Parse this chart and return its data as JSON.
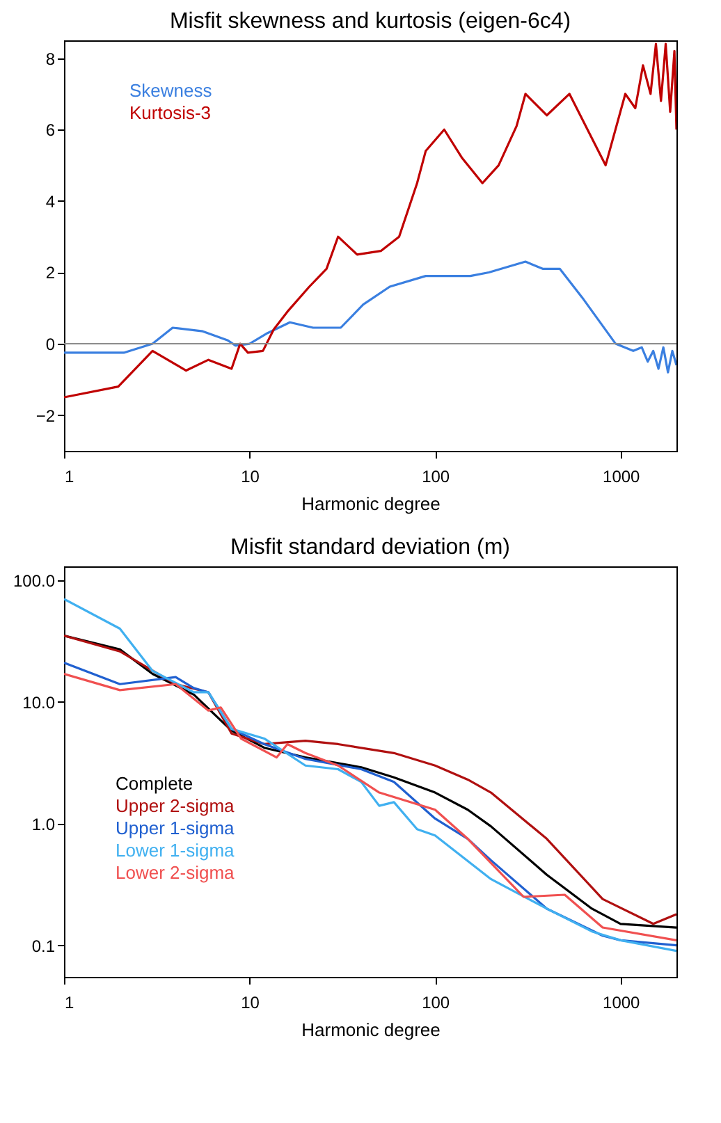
{
  "chart_data": [
    {
      "type": "line",
      "title": "Misfit skewness and kurtosis (eigen-6c4)",
      "xlabel": "Harmonic degree",
      "log": "x",
      "grid": false,
      "legend": "top left",
      "xlim": [
        1,
        2000
      ],
      "xticks": [
        1,
        10,
        100,
        1000
      ],
      "ylim": [
        -3,
        8.5
      ],
      "yticks": [
        -2,
        0,
        2,
        4,
        6,
        8
      ],
      "ref_lines": [
        {
          "axis": "y",
          "value": 0,
          "color": "#8c8c8c"
        }
      ],
      "series": [
        {
          "name": "Skewness",
          "color": "#3a7fe0",
          "x": [
            1,
            2.1,
            3,
            3.85,
            5.6,
            7.6,
            8.4,
            10,
            12.5,
            16.5,
            22,
            31,
            41,
            57,
            89,
            155,
            195,
            307,
            380,
            470,
            620,
            940,
            1170,
            1300,
            1400,
            1500,
            1600,
            1700,
            1800,
            1900,
            2000
          ],
          "values": [
            -0.25,
            -0.25,
            0,
            0.45,
            0.35,
            0.1,
            -0.05,
            0,
            0.3,
            0.6,
            0.45,
            0.45,
            1.1,
            1.6,
            1.9,
            1.9,
            2.0,
            2.3,
            2.1,
            2.1,
            1.3,
            0,
            -0.2,
            -0.1,
            -0.5,
            -0.2,
            -0.7,
            -0.1,
            -0.8,
            -0.2,
            -0.6
          ]
        },
        {
          "name": "Kurtosis-3",
          "color": "#c00000",
          "x": [
            1,
            1.96,
            3,
            4.55,
            6,
            8,
            8.9,
            9.8,
            11.8,
            13.5,
            16,
            21,
            26,
            30,
            38,
            51,
            64,
            80,
            89,
            112,
            140,
            180,
            220,
            275,
            307,
            400,
            530,
            830,
            1060,
            1200,
            1320,
            1450,
            1550,
            1650,
            1750,
            1850,
            1950,
            2000
          ],
          "values": [
            -1.5,
            -1.2,
            -0.2,
            -0.75,
            -0.45,
            -0.7,
            0,
            -0.25,
            -0.2,
            0.4,
            0.9,
            1.6,
            2.1,
            3.0,
            2.5,
            2.6,
            3.0,
            4.5,
            5.4,
            6.0,
            5.2,
            4.5,
            5.0,
            6.1,
            7.0,
            6.4,
            7.0,
            5.0,
            7.0,
            6.6,
            7.8,
            7.0,
            8.4,
            6.8,
            8.4,
            6.5,
            8.2,
            6.0
          ]
        }
      ]
    },
    {
      "type": "line",
      "title": "Misfit standard deviation (m)",
      "xlabel": "Harmonic degree",
      "log": "xy",
      "grid": false,
      "legend": "left",
      "xlim": [
        1,
        2000
      ],
      "xticks": [
        1,
        10,
        100,
        1000
      ],
      "ylim": [
        0.055,
        130
      ],
      "yticks": [
        {
          "value": 0.1,
          "label": "0.1"
        },
        {
          "value": 1,
          "label": "1.0"
        },
        {
          "value": 10,
          "label": "10.0"
        },
        {
          "value": 100,
          "label": "100.0"
        }
      ],
      "series": [
        {
          "name": "Complete",
          "color": "#000000",
          "x": [
            1,
            2,
            3,
            5,
            8,
            12,
            20,
            40,
            60,
            100,
            150,
            200,
            400,
            700,
            1000,
            2000
          ],
          "values": [
            35,
            27,
            17,
            11.5,
            5.8,
            4.2,
            3.5,
            2.9,
            2.4,
            1.8,
            1.3,
            0.95,
            0.38,
            0.2,
            0.15,
            0.14
          ]
        },
        {
          "name": "Upper 2-sigma",
          "color": "#b01010",
          "x": [
            1,
            2,
            4,
            6,
            8,
            12,
            20,
            30,
            60,
            100,
            150,
            200,
            400,
            800,
            1500,
            2000
          ],
          "values": [
            35,
            26,
            14,
            12,
            5.5,
            4.5,
            4.8,
            4.5,
            3.8,
            3.0,
            2.3,
            1.8,
            0.75,
            0.24,
            0.15,
            0.18
          ]
        },
        {
          "name": "Upper 1-sigma",
          "color": "#2060d0",
          "x": [
            1,
            2,
            4,
            5,
            6,
            8,
            12,
            20,
            40,
            60,
            100,
            150,
            200,
            400,
            800,
            1000,
            2000
          ],
          "values": [
            21,
            14,
            16,
            13,
            12,
            6,
            4.5,
            3.4,
            2.8,
            2.2,
            1.1,
            0.75,
            0.5,
            0.2,
            0.12,
            0.11,
            0.1
          ]
        },
        {
          "name": "Lower 1-sigma",
          "color": "#40b0f0",
          "x": [
            1,
            2,
            3,
            5,
            6,
            8,
            12,
            20,
            30,
            40,
            50,
            60,
            80,
            100,
            200,
            400,
            700,
            1000,
            2000
          ],
          "values": [
            70,
            40,
            18,
            12,
            12,
            6,
            5,
            3.0,
            2.8,
            2.2,
            1.4,
            1.5,
            0.9,
            0.8,
            0.35,
            0.2,
            0.13,
            0.11,
            0.09
          ]
        },
        {
          "name": "Lower 2-sigma",
          "color": "#f05050",
          "x": [
            1,
            2,
            4,
            6,
            7,
            9,
            14,
            16,
            20,
            30,
            50,
            100,
            150,
            300,
            500,
            800,
            2000
          ],
          "values": [
            17,
            12.5,
            14,
            8.5,
            9,
            5,
            3.5,
            4.5,
            3.8,
            3.0,
            1.8,
            1.3,
            0.75,
            0.25,
            0.26,
            0.14,
            0.11
          ]
        }
      ]
    }
  ]
}
